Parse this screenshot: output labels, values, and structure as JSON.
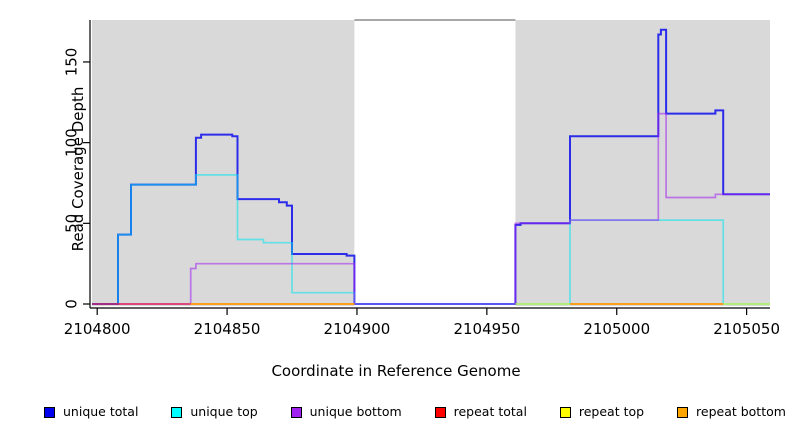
{
  "chart_data": {
    "type": "line",
    "subtype": "step-coverage-plot",
    "title": "",
    "xlabel": "Coordinate in Reference Genome",
    "ylabel": "Read Coverage Depth",
    "xlim": [
      2104798,
      2105059
    ],
    "ylim": [
      0,
      176
    ],
    "x_ticks": [
      2104800,
      2104850,
      2104900,
      2104950,
      2105000,
      2105050
    ],
    "y_ticks": [
      0,
      50,
      100,
      150
    ],
    "grid": "off",
    "panel_color": "#d9d9d9",
    "background_panels": [
      {
        "x0": 2104798,
        "x1": 2104899
      },
      {
        "x0": 2104961,
        "x1": 2105059
      }
    ],
    "masked_gap": {
      "x0": 2104899,
      "x1": 2104961,
      "fill": "#ffffff",
      "top_line_color": "#8c8c8c"
    },
    "legend_position": "bottom",
    "series": [
      {
        "name": "unique total",
        "color": "#0000EE",
        "alpha": 0.8,
        "width": 2,
        "segments": [
          [
            [
              2104798,
              0
            ],
            [
              2104808,
              43
            ],
            [
              2104813,
              74
            ],
            [
              2104838,
              103
            ],
            [
              2104840,
              105
            ],
            [
              2104852,
              104
            ],
            [
              2104854,
              65
            ],
            [
              2104870,
              63
            ],
            [
              2104873,
              61
            ],
            [
              2104875,
              31
            ],
            [
              2104896,
              30
            ],
            [
              2104899,
              0
            ],
            [
              2104961,
              49
            ],
            [
              2104963,
              50
            ],
            [
              2104982,
              104
            ],
            [
              2105016,
              167
            ],
            [
              2105017,
              170
            ],
            [
              2105019,
              118
            ],
            [
              2105038,
              120
            ],
            [
              2105041,
              68
            ],
            [
              2105059,
              68
            ]
          ]
        ]
      },
      {
        "name": "unique top",
        "color": "#00E5EE",
        "alpha": 0.55,
        "width": 1.7,
        "segments": [
          [
            [
              2104798,
              0
            ],
            [
              2104808,
              43
            ],
            [
              2104813,
              74
            ],
            [
              2104838,
              80
            ],
            [
              2104854,
              40
            ],
            [
              2104864,
              38
            ],
            [
              2104875,
              7
            ],
            [
              2104899,
              0
            ],
            [
              2104982,
              52
            ],
            [
              2105041,
              0
            ],
            [
              2105059,
              0
            ]
          ]
        ]
      },
      {
        "name": "unique bottom",
        "color": "#A020F0",
        "alpha": 0.55,
        "width": 1.7,
        "segments": [
          [
            [
              2104798,
              0
            ],
            [
              2104836,
              22
            ],
            [
              2104838,
              25
            ],
            [
              2104899,
              0
            ],
            [
              2104961,
              50
            ],
            [
              2104982,
              52
            ],
            [
              2105016,
              118
            ],
            [
              2105019,
              66
            ],
            [
              2105038,
              68
            ],
            [
              2105059,
              68
            ]
          ]
        ]
      },
      {
        "name": "repeat total",
        "color": "#FF0000",
        "alpha": 0.6,
        "width": 1.5,
        "segments": [
          [
            [
              2104798,
              0
            ],
            [
              2104899,
              0
            ]
          ],
          [
            [
              2104982,
              0
            ],
            [
              2105041,
              0
            ]
          ]
        ]
      },
      {
        "name": "repeat top",
        "color": "#FFFF00",
        "alpha": 0.6,
        "width": 1.5,
        "segments": [
          [
            [
              2104836,
              0
            ],
            [
              2104899,
              0
            ]
          ],
          [
            [
              2104961,
              0
            ],
            [
              2105059,
              0
            ]
          ]
        ]
      },
      {
        "name": "repeat bottom",
        "color": "#FF9912",
        "alpha": 0.95,
        "width": 1.8,
        "segments": [
          [
            [
              2104836,
              0
            ],
            [
              2104899,
              0
            ]
          ],
          [
            [
              2104982,
              0
            ],
            [
              2105041,
              0
            ]
          ]
        ]
      }
    ],
    "legend": [
      {
        "label": "unique total",
        "color": "#0000EE"
      },
      {
        "label": "unique top",
        "color": "#00FFFF"
      },
      {
        "label": "unique bottom",
        "color": "#A020F0"
      },
      {
        "label": "repeat total",
        "color": "#FF0000"
      },
      {
        "label": "repeat top",
        "color": "#FFFF00"
      },
      {
        "label": "repeat bottom",
        "color": "#FFA500"
      }
    ]
  }
}
